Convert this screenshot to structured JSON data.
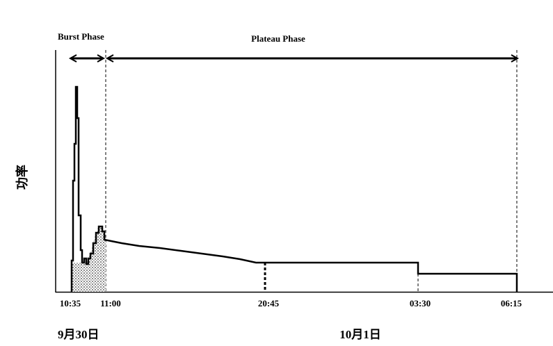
{
  "annotations": {
    "burst_phase": "Burst Phase",
    "plateau_phase": "Plateau Phase"
  },
  "y_axis_label": "功率",
  "x_ticks": [
    "10:35",
    "11:00",
    "20:45",
    "03:30",
    "06:15"
  ],
  "dates": [
    "9月30日",
    "10月1日"
  ]
}
